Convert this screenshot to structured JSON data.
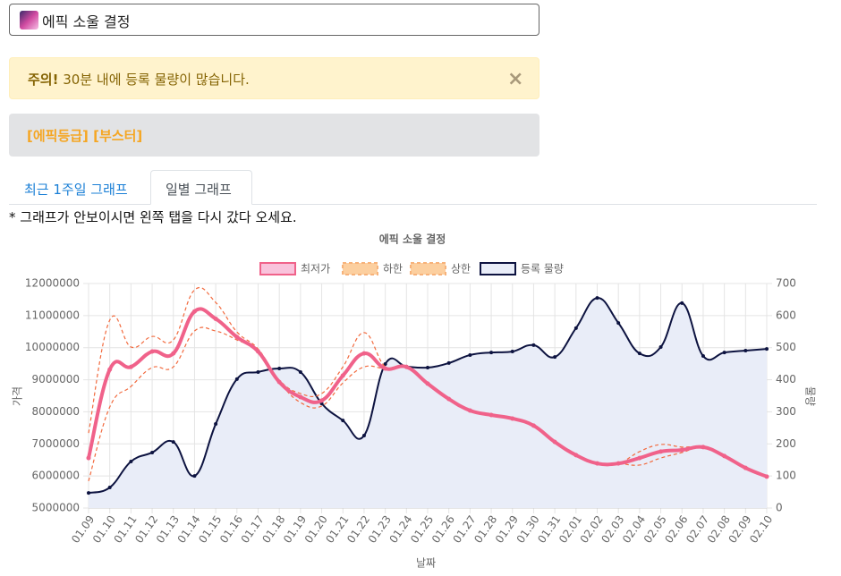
{
  "search": {
    "text": "에픽 소울 결정"
  },
  "alert": {
    "strong": "주의!",
    "text": "30분 내에 등록 물량이 많습니다.",
    "close": "×"
  },
  "tags": "[에픽등급] [부스터]",
  "tabs": [
    "최근 1주일 그래프",
    "일별 그래프"
  ],
  "note": "* 그래프가 안보이시면 왼쪽 탭을 다시 갔다 오세요.",
  "chart_data": {
    "type": "line",
    "title": "에픽 소울 결정",
    "x_label": "날짜",
    "y_label": "가격",
    "y2_label": "물량",
    "categories": [
      "01.09",
      "01.10",
      "01.11",
      "01.12",
      "01.13",
      "01.14",
      "01.15",
      "01.16",
      "01.17",
      "01.18",
      "01.19",
      "01.20",
      "01.21",
      "01.22",
      "01.23",
      "01.24",
      "01.25",
      "01.26",
      "01.27",
      "01.28",
      "01.29",
      "01.30",
      "01.31",
      "02.01",
      "02.02",
      "02.03",
      "02.04",
      "02.05",
      "02.06",
      "02.07",
      "02.08",
      "02.09",
      "02.10"
    ],
    "ylim": [
      5000000,
      12000000
    ],
    "yticks": [
      5000000,
      6000000,
      7000000,
      8000000,
      9000000,
      10000000,
      11000000,
      12000000
    ],
    "y2lim": [
      0,
      700
    ],
    "y2ticks": [
      0,
      100,
      200,
      300,
      400,
      500,
      600,
      700
    ],
    "grid": true,
    "legend": "top",
    "series": [
      {
        "name": "최저가",
        "color": "#f0628a",
        "values": [
          6560000,
          9320000,
          9400000,
          9880000,
          9820000,
          11130000,
          10900000,
          10330000,
          9880000,
          8930000,
          8460000,
          8350000,
          9130000,
          9820000,
          9350000,
          9400000,
          8880000,
          8400000,
          8040000,
          7900000,
          7790000,
          7570000,
          7060000,
          6650000,
          6390000,
          6390000,
          6560000,
          6760000,
          6810000,
          6900000,
          6620000,
          6250000,
          5980000
        ]
      },
      {
        "name": "하한",
        "color": "#f26a3e",
        "values": [
          5840000,
          8150000,
          8790000,
          9380000,
          9400000,
          10520000,
          10520000,
          10240000,
          9880000,
          8930000,
          8290000,
          8180000,
          8900000,
          9400000,
          9350000,
          9400000,
          8880000,
          8400000,
          8040000,
          7900000,
          7790000,
          7570000,
          7060000,
          6650000,
          6390000,
          6390000,
          6340000,
          6560000,
          6730000,
          6900000,
          6620000,
          6250000,
          5980000
        ]
      },
      {
        "name": "상한",
        "color": "#f26a3e",
        "values": [
          7340000,
          10860000,
          10020000,
          10350000,
          10240000,
          11800000,
          11410000,
          10490000,
          9960000,
          8990000,
          8570000,
          8570000,
          9400000,
          10470000,
          9400000,
          9400000,
          8880000,
          8400000,
          8040000,
          7900000,
          7790000,
          7570000,
          7060000,
          6650000,
          6390000,
          6390000,
          6760000,
          6980000,
          6900000,
          6900000,
          6620000,
          6250000,
          5980000
        ]
      },
      {
        "name": "등록 물량",
        "color": "#0d1340",
        "axis": "y2",
        "values": [
          47,
          64,
          145,
          173,
          206,
          100,
          262,
          402,
          424,
          435,
          424,
          326,
          273,
          226,
          449,
          441,
          438,
          452,
          477,
          485,
          488,
          508,
          471,
          561,
          655,
          577,
          482,
          502,
          639,
          474,
          485,
          491,
          496
        ]
      }
    ]
  }
}
